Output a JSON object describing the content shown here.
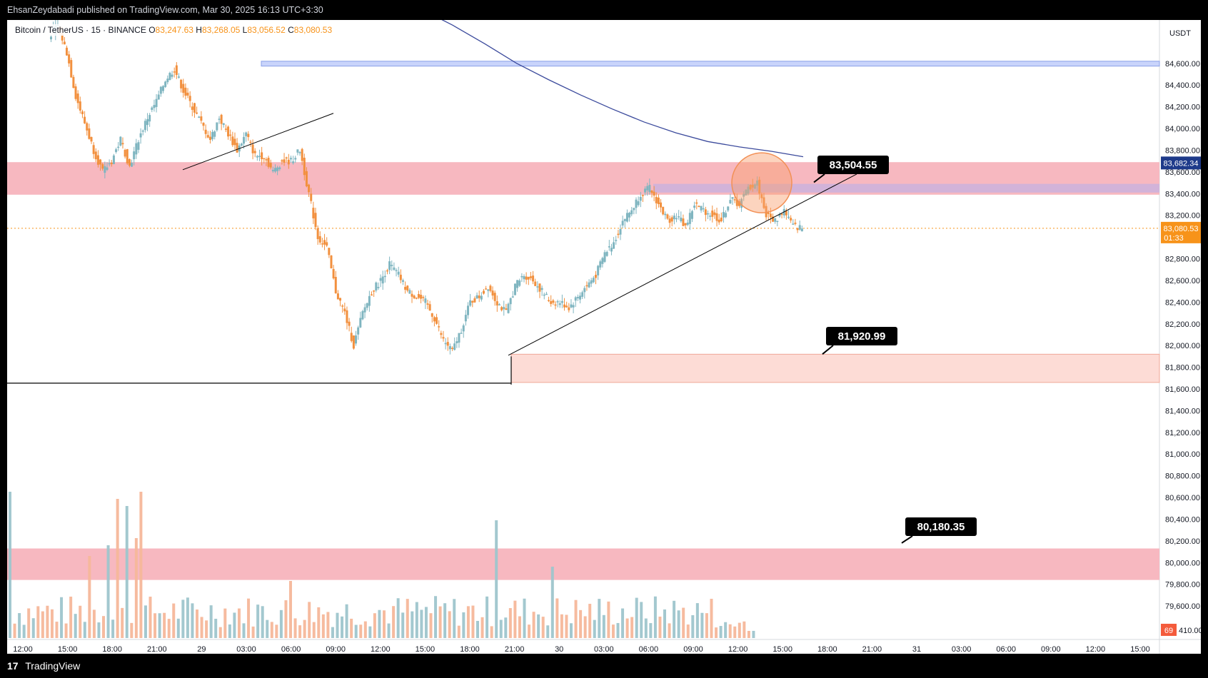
{
  "header": {
    "publish_line": "EhsanZeydabadi published on TradingView.com, Mar 30, 2025 16:13 UTC+3:30"
  },
  "legend": {
    "symbol": "Bitcoin / TetherUS · 15 · BINANCE",
    "o_label": "O",
    "o_value": "83,247.63",
    "h_label": "H",
    "h_value": "83,268.05",
    "l_label": "L",
    "l_value": "83,056.52",
    "c_label": "C",
    "c_value": "83,080.53"
  },
  "footer": {
    "logo_icon": "tradingview-logo-icon",
    "brand": "TradingView"
  },
  "colors": {
    "up": "#7fb5c0",
    "down": "#f2903e",
    "ma": "#3b4a9c",
    "zone_red": "#f7b8c0",
    "zone_salmon": "#fddcd6",
    "zone_blue": "#c9d4fb",
    "price_tag": "#f7931a",
    "ma_tag": "#1e3a8a"
  },
  "chart_data": {
    "type": "candlestick",
    "title": "",
    "currency": "USDT",
    "ylim": [
      79410,
      85000
    ],
    "y_ticks": [
      "84,600.00",
      "84,400.00",
      "84,200.00",
      "84,000.00",
      "83,800.00",
      "83,600.00",
      "83,400.00",
      "83,200.00",
      "82,800.00",
      "82,600.00",
      "82,400.00",
      "82,200.00",
      "82,000.00",
      "81,800.00",
      "81,600.00",
      "81,400.00",
      "81,200.00",
      "81,000.00",
      "80,800.00",
      "80,600.00",
      "80,400.00",
      "80,200.00",
      "80,000.00",
      "79,800.00",
      "79,600.00",
      "79,410.00"
    ],
    "x_ticks": [
      "12:00",
      "15:00",
      "18:00",
      "21:00",
      "29",
      "03:00",
      "06:00",
      "09:00",
      "12:00",
      "15:00",
      "18:00",
      "21:00",
      "30",
      "03:00",
      "06:00",
      "09:00",
      "12:00",
      "15:00",
      "18:00",
      "21:00",
      "31",
      "03:00",
      "06:00",
      "09:00",
      "12:00",
      "15:00"
    ],
    "last_price": {
      "value": 83080.53,
      "label": "83,080.53",
      "countdown": "01:33"
    },
    "ma_value": {
      "value": 83682.34,
      "label": "83,682.34"
    },
    "volume_badge": "69",
    "price_path": [
      84850,
      84950,
      84700,
      84300,
      84050,
      83800,
      83600,
      83700,
      83900,
      83650,
      83900,
      84100,
      84250,
      84450,
      84550,
      84350,
      84200,
      84050,
      83900,
      84100,
      83950,
      83800,
      83950,
      83750,
      83750,
      83600,
      83700,
      83700,
      83800,
      83400,
      83000,
      82900,
      82500,
      82300,
      82000,
      82300,
      82500,
      82600,
      82750,
      82650,
      82500,
      82450,
      82400,
      82250,
      82050,
      81950,
      82150,
      82400,
      82450,
      82550,
      82400,
      82300,
      82550,
      82650,
      82600,
      82500,
      82400,
      82400,
      82350,
      82450,
      82550,
      82650,
      82850,
      82950,
      83150,
      83250,
      83400,
      83450,
      83300,
      83150,
      83200,
      83100,
      83300,
      83250,
      83200,
      83150,
      83350,
      83300,
      83450,
      83500,
      83200,
      83150,
      83250,
      83100,
      83080
    ],
    "ma_path": [
      85100,
      84950,
      84780,
      84600,
      84450,
      84310,
      84180,
      84060,
      83960,
      83880,
      83830,
      83790,
      83740
    ],
    "annotations": [
      {
        "label": "83,504.55",
        "price": 83504.55
      },
      {
        "label": "81,920.99",
        "price": 81920.99
      },
      {
        "label": "80,180.35",
        "price": 80180.35
      }
    ],
    "zones": [
      {
        "name": "resistance-zone-upper",
        "top": 83690,
        "bottom": 83390
      },
      {
        "name": "support-zone-lower",
        "top": 80130,
        "bottom": 79840
      },
      {
        "name": "demand-zone",
        "top": 81920,
        "bottom": 81660
      },
      {
        "name": "blue-band-84600",
        "top": 84620,
        "bottom": 84575
      },
      {
        "name": "purple-band",
        "top": 83490,
        "bottom": 83410
      }
    ],
    "horizontal_levels": [
      {
        "name": "swing-low-line",
        "price": 81660
      }
    ]
  }
}
